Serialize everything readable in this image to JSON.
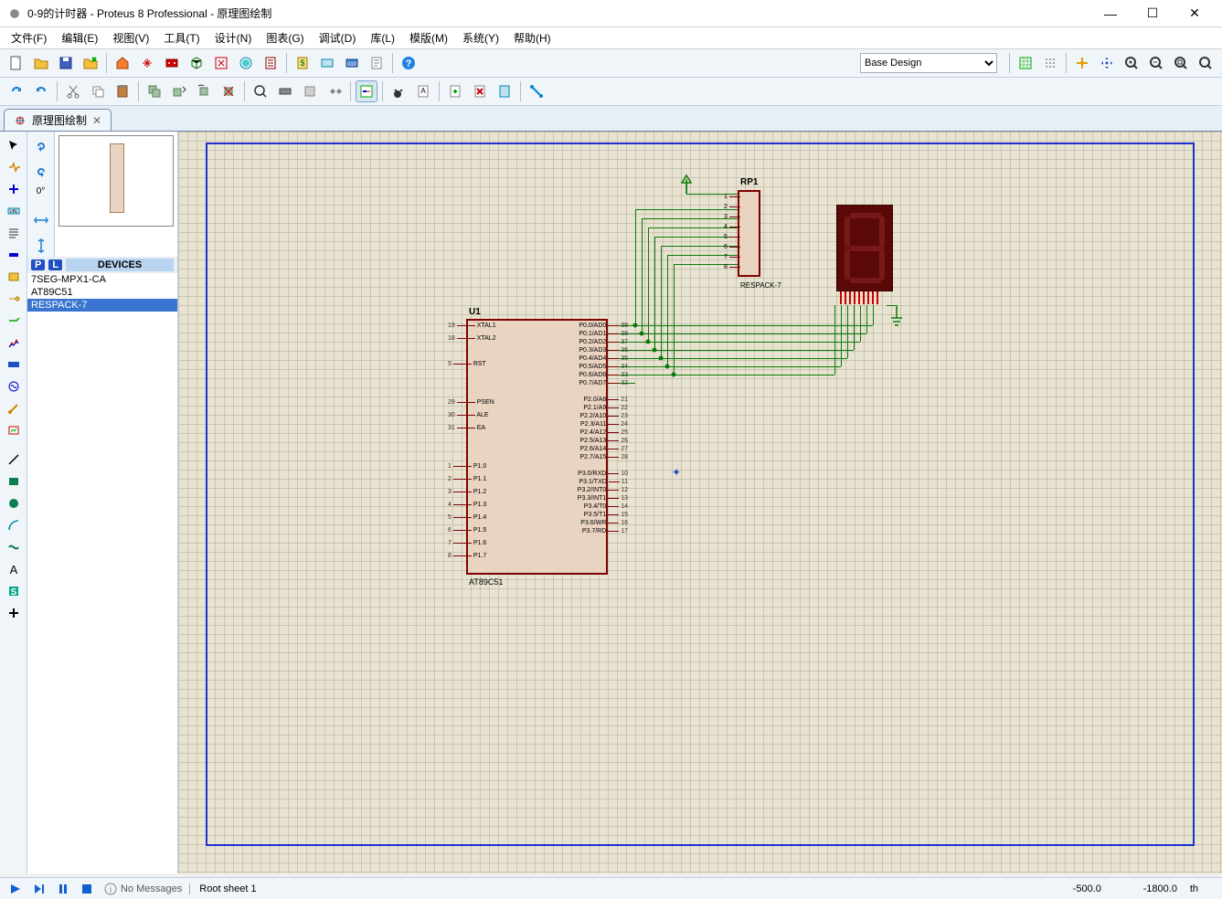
{
  "window": {
    "title": "0-9的计时器 - Proteus 8 Professional - 原理图绘制",
    "min": "—",
    "max": "☐",
    "close": "✕"
  },
  "menus": [
    "文件(F)",
    "编辑(E)",
    "视图(V)",
    "工具(T)",
    "设计(N)",
    "图表(G)",
    "调试(D)",
    "库(L)",
    "模版(M)",
    "系统(Y)",
    "帮助(H)"
  ],
  "design_selector": "Base Design",
  "tab": {
    "label": "原理图绘制"
  },
  "rotation_label": "0°",
  "devices": {
    "header": "DEVICES",
    "list": [
      "7SEG-MPX1-CA",
      "AT89C51",
      "RESPACK-7"
    ],
    "selected": 2
  },
  "schematic": {
    "u1": {
      "ref": "U1",
      "part": "AT89C51",
      "left_pins": [
        {
          "num": "19",
          "name": "XTAL1"
        },
        {
          "num": "18",
          "name": "XTAL2"
        },
        {
          "num": "",
          "name": ""
        },
        {
          "num": "9",
          "name": "RST"
        },
        {
          "num": "",
          "name": ""
        },
        {
          "num": "",
          "name": ""
        },
        {
          "num": "29",
          "name": "PSEN"
        },
        {
          "num": "30",
          "name": "ALE"
        },
        {
          "num": "31",
          "name": "EA"
        },
        {
          "num": "",
          "name": ""
        },
        {
          "num": "",
          "name": ""
        },
        {
          "num": "1",
          "name": "P1.0"
        },
        {
          "num": "2",
          "name": "P1.1"
        },
        {
          "num": "3",
          "name": "P1.2"
        },
        {
          "num": "4",
          "name": "P1.3"
        },
        {
          "num": "5",
          "name": "P1.4"
        },
        {
          "num": "6",
          "name": "P1.5"
        },
        {
          "num": "7",
          "name": "P1.6"
        },
        {
          "num": "8",
          "name": "P1.7"
        }
      ],
      "right_pins": [
        {
          "num": "39",
          "name": "P0.0/AD0"
        },
        {
          "num": "38",
          "name": "P0.1/AD1"
        },
        {
          "num": "37",
          "name": "P0.2/AD2"
        },
        {
          "num": "36",
          "name": "P0.3/AD3"
        },
        {
          "num": "35",
          "name": "P0.4/AD4"
        },
        {
          "num": "34",
          "name": "P0.5/AD5"
        },
        {
          "num": "33",
          "name": "P0.6/AD6"
        },
        {
          "num": "32",
          "name": "P0.7/AD7"
        },
        {
          "num": "",
          "name": ""
        },
        {
          "num": "21",
          "name": "P2.0/A8"
        },
        {
          "num": "22",
          "name": "P2.1/A9"
        },
        {
          "num": "23",
          "name": "P2.2/A10"
        },
        {
          "num": "24",
          "name": "P2.3/A11"
        },
        {
          "num": "25",
          "name": "P2.4/A12"
        },
        {
          "num": "26",
          "name": "P2.5/A13"
        },
        {
          "num": "27",
          "name": "P2.6/A14"
        },
        {
          "num": "28",
          "name": "P2.7/A15"
        },
        {
          "num": "",
          "name": ""
        },
        {
          "num": "10",
          "name": "P3.0/RXD"
        },
        {
          "num": "11",
          "name": "P3.1/TXD"
        },
        {
          "num": "12",
          "name": "P3.2/INT0"
        },
        {
          "num": "13",
          "name": "P3.3/INT1"
        },
        {
          "num": "14",
          "name": "P3.4/T0"
        },
        {
          "num": "15",
          "name": "P3.5/T1"
        },
        {
          "num": "16",
          "name": "P3.6/WR"
        },
        {
          "num": "17",
          "name": "P3.7/RD"
        }
      ]
    },
    "rp1": {
      "ref": "RP1",
      "part": "RESPACK-7",
      "pin_nums": [
        "1",
        "2",
        "3",
        "4",
        "5",
        "6",
        "7",
        "8"
      ]
    },
    "colors": {
      "wire": "#0a7a0a",
      "chip_fill": "#e8d4c0",
      "chip_border": "#800000",
      "sheet_border": "#2030d0",
      "sevenseg_bg": "#5a0808"
    }
  },
  "statusbar": {
    "messages": "No Messages",
    "sheet": "Root sheet 1",
    "x": "-500.0",
    "y": "-1800.0",
    "unit": "th"
  }
}
